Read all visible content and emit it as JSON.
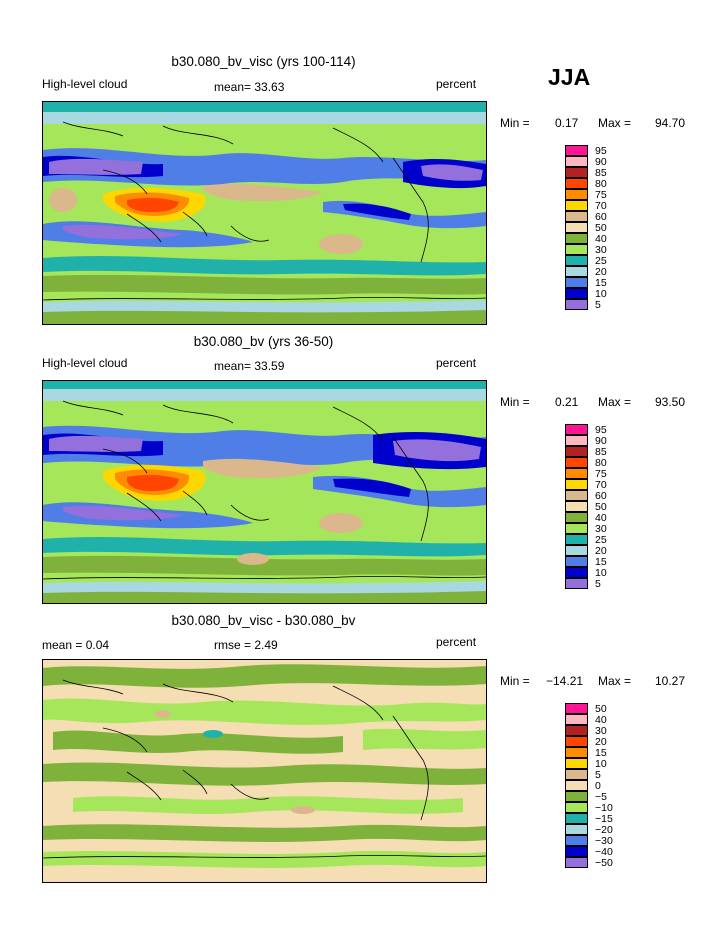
{
  "season": "JJA",
  "panels": [
    {
      "title": "b30.080_bv_visc (yrs 100-114)",
      "left_label": "High-level cloud",
      "center_label": "mean=  33.63",
      "right_label": "percent",
      "min_label": "Min =",
      "min_value": "0.17",
      "max_label": "Max =",
      "max_value": "94.70",
      "levels": [
        "95",
        "90",
        "85",
        "80",
        "75",
        "70",
        "60",
        "50",
        "40",
        "30",
        "25",
        "20",
        "15",
        "10",
        "5"
      ]
    },
    {
      "title": "b30.080_bv (yrs 36-50)",
      "left_label": "High-level cloud",
      "center_label": "mean=  33.59",
      "right_label": "percent",
      "min_label": "Min =",
      "min_value": "0.21",
      "max_label": "Max =",
      "max_value": "93.50",
      "levels": [
        "95",
        "90",
        "85",
        "80",
        "75",
        "70",
        "60",
        "50",
        "40",
        "30",
        "25",
        "20",
        "15",
        "10",
        "5"
      ]
    },
    {
      "title": "b30.080_bv_visc - b30.080_bv",
      "left_label": "mean =    0.04",
      "center_label": "rmse =    2.49",
      "right_label": "percent",
      "min_label": "Min =",
      "min_value": "−14.21",
      "max_label": "Max =",
      "max_value": "10.27",
      "levels": [
        "50",
        "40",
        "30",
        "20",
        "15",
        "10",
        "5",
        "0",
        "−5",
        "−10",
        "−15",
        "−20",
        "−30",
        "−40",
        "−50"
      ]
    }
  ],
  "palette": [
    "#ff1493",
    "#ffb6c1",
    "#b22222",
    "#ff4500",
    "#ff8c00",
    "#ffd700",
    "#dab88b",
    "#f5deb3",
    "#7fb23a",
    "#a6e65a",
    "#20b2aa",
    "#a8d8e0",
    "#4f7fe6",
    "#0000cd",
    "#9370db"
  ],
  "land_color": "#000000"
}
